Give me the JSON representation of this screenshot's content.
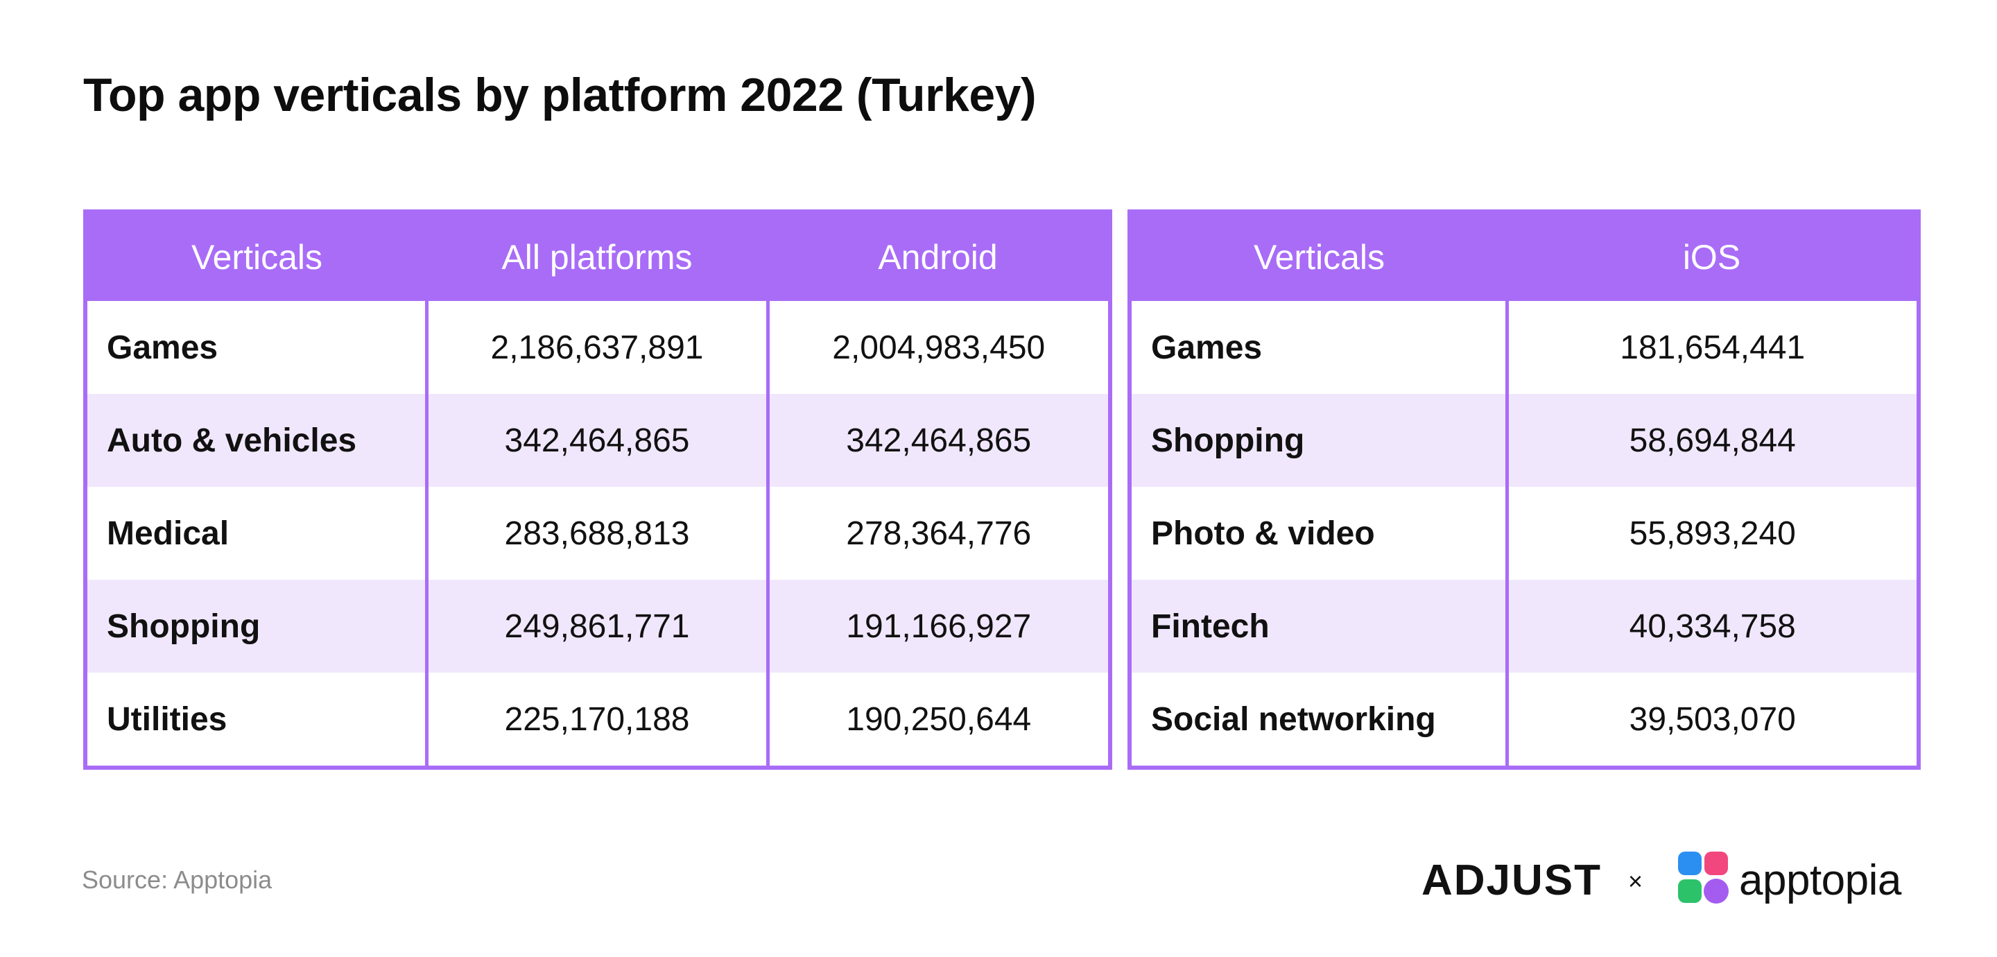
{
  "title": "Top app verticals by platform 2022 (Turkey)",
  "source": "Source: Apptopia",
  "logos": {
    "adjust": "ADJUST",
    "separator": "×",
    "apptopia": "apptopia"
  },
  "colors": {
    "accent": "#a96cf7",
    "stripe": "#f1e7fd",
    "text": "#111111",
    "muted": "#8c8c8c"
  },
  "chart_data": [
    {
      "type": "table",
      "columns": [
        "Verticals",
        "All platforms",
        "Android"
      ],
      "rows": [
        [
          "Games",
          "2,186,637,891",
          "2,004,983,450"
        ],
        [
          "Auto & vehicles",
          "342,464,865",
          "342,464,865"
        ],
        [
          "Medical",
          "283,688,813",
          "278,364,776"
        ],
        [
          "Shopping",
          "249,861,771",
          "191,166,927"
        ],
        [
          "Utilities",
          "225,170,188",
          "190,250,644"
        ]
      ]
    },
    {
      "type": "table",
      "columns": [
        "Verticals",
        "iOS"
      ],
      "rows": [
        [
          "Games",
          "181,654,441"
        ],
        [
          "Shopping",
          "58,694,844"
        ],
        [
          "Photo & video",
          "55,893,240"
        ],
        [
          "Fintech",
          "40,334,758"
        ],
        [
          "Social networking",
          "39,503,070"
        ]
      ]
    }
  ]
}
